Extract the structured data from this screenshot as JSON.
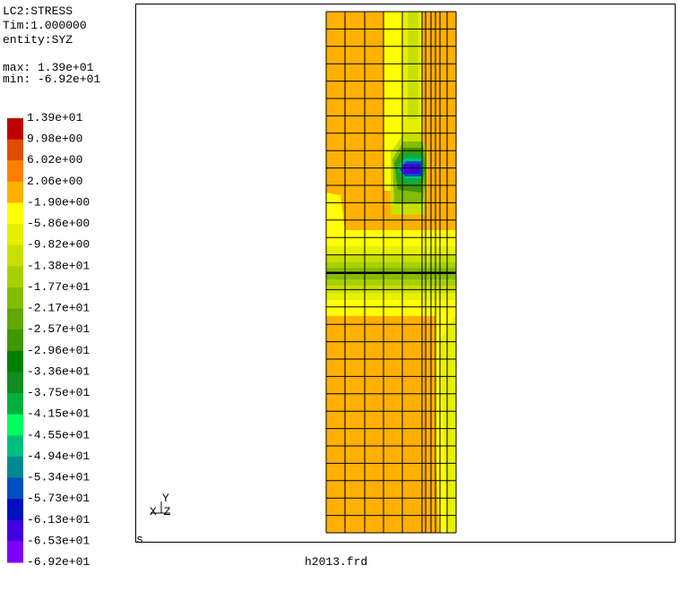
{
  "header": {
    "lines": [
      "LC2:STRESS",
      "Tim:1.000000",
      "entity:SYZ"
    ],
    "max": "max: 1.39e+01",
    "min": "min: -6.92e+01"
  },
  "legend": {
    "labels": [
      "1.39e+01",
      "9.98e+00",
      "6.02e+00",
      "2.06e+00",
      "-1.90e+00",
      "-5.86e+00",
      "-9.82e+00",
      "-1.38e+01",
      "-1.77e+01",
      "-2.17e+01",
      "-2.57e+01",
      "-2.96e+01",
      "-3.36e+01",
      "-3.75e+01",
      "-4.15e+01",
      "-4.55e+01",
      "-4.94e+01",
      "-5.34e+01",
      "-5.73e+01",
      "-6.13e+01",
      "-6.53e+01",
      "-6.92e+01"
    ],
    "colors": [
      "#c00000",
      "#e04c00",
      "#ff8000",
      "#ffb000",
      "#ffff00",
      "#e6f000",
      "#c8e000",
      "#a8d000",
      "#84bc00",
      "#62a800",
      "#409800",
      "#008000",
      "#108c20",
      "#00b040",
      "#00ff60",
      "#00c080",
      "#008890",
      "#0050c0",
      "#0010c0",
      "#4000e0",
      "#8000ff"
    ]
  },
  "viewport": {
    "file": "h2013.frd",
    "corner": "s",
    "axis_y": "Y",
    "axis_xz": "X Z"
  }
}
